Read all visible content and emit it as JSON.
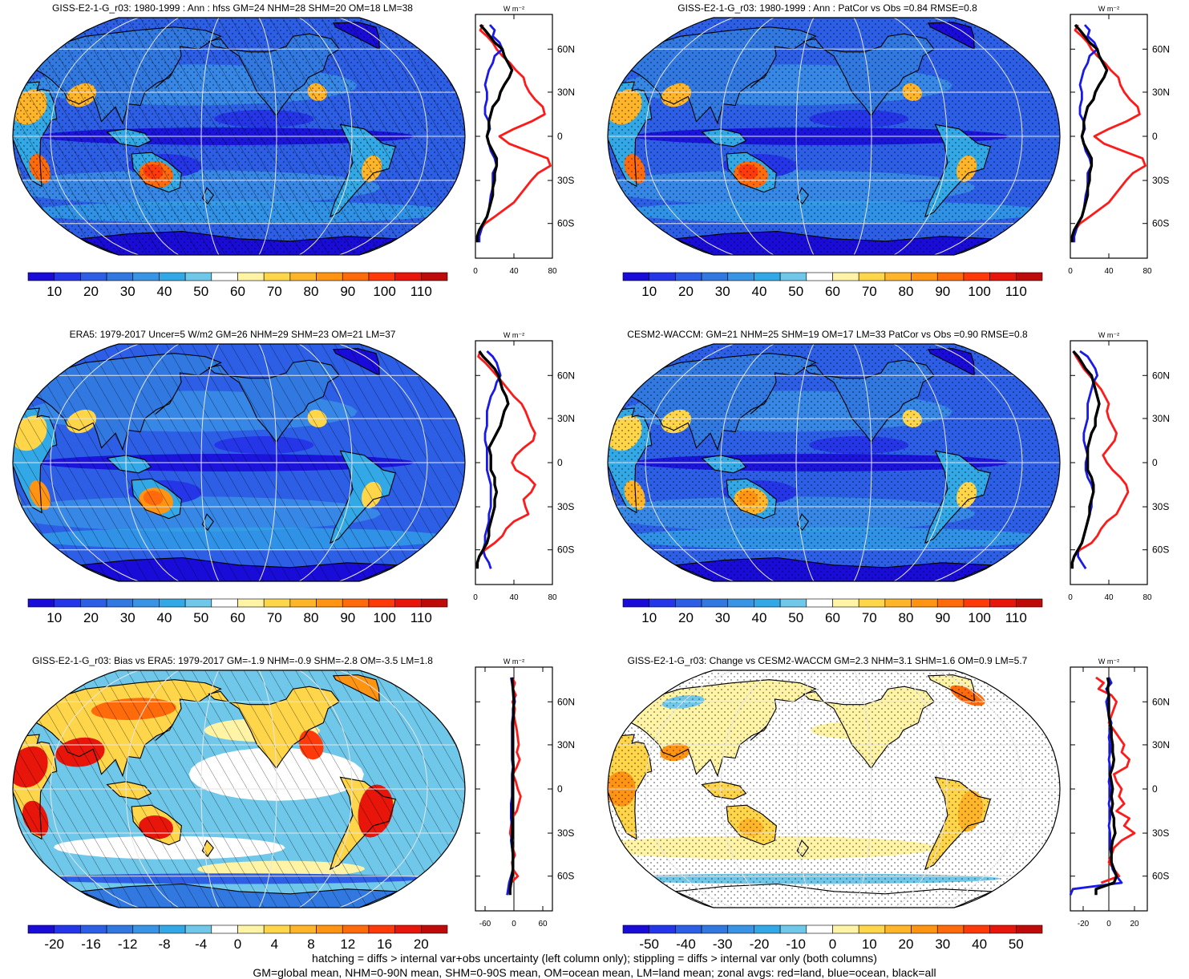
{
  "panels": [
    {
      "title": "GISS-E2-1-G_r03: 1980-1999 : Ann : hfss GM=24 NHM=28 SHM=20 OM=18 LM=38",
      "map_style": "model",
      "hatching": true,
      "stipple": true,
      "colorbar": {
        "labels": [
          "10",
          "20",
          "30",
          "40",
          "50",
          "60",
          "70",
          "80",
          "90",
          "100",
          "110"
        ],
        "colors": [
          "#1a0cd8",
          "#2436e8",
          "#2d5fe6",
          "#3179e0",
          "#3a94e6",
          "#32a8e6",
          "#6fc8ea",
          "#ffffff",
          "#fff3a6",
          "#ffd54a",
          "#ffb52a",
          "#ff9312",
          "#ff6a0a",
          "#ff3a0a",
          "#e8150a",
          "#bf0a0a"
        ]
      },
      "zonal": {
        "unit": "W m⁻²",
        "xticks": [
          "0",
          "40",
          "80"
        ],
        "xlim": [
          0,
          80
        ],
        "yticks": [
          "60N",
          "30N",
          "0",
          "30S",
          "60S"
        ],
        "lat": [
          80,
          75,
          70,
          65,
          60,
          55,
          50,
          45,
          40,
          35,
          30,
          25,
          20,
          15,
          10,
          5,
          0,
          -5,
          -10,
          -15,
          -20,
          -25,
          -30,
          -35,
          -40,
          -45,
          -50,
          -55,
          -60,
          -65,
          -70,
          -75
        ],
        "land": [
          8,
          5,
          12,
          18,
          22,
          28,
          36,
          42,
          50,
          52,
          56,
          62,
          70,
          72,
          58,
          40,
          25,
          35,
          55,
          75,
          78,
          65,
          58,
          52,
          46,
          40,
          30,
          20,
          10,
          5,
          null,
          null
        ],
        "ocean": [
          15,
          20,
          18,
          25,
          28,
          20,
          18,
          14,
          12,
          10,
          12,
          12,
          10,
          10,
          14,
          15,
          12,
          14,
          16,
          20,
          22,
          18,
          18,
          18,
          16,
          15,
          14,
          12,
          8,
          6,
          4,
          4
        ],
        "all": [
          5,
          10,
          15,
          20,
          28,
          30,
          34,
          38,
          35,
          30,
          26,
          24,
          18,
          16,
          14,
          14,
          12,
          14,
          18,
          22,
          22,
          20,
          20,
          18,
          18,
          16,
          14,
          12,
          8,
          4,
          2,
          2
        ]
      }
    },
    {
      "title": "GISS-E2-1-G_r03: 1980-1999 : Ann : PatCor vs Obs =0.84 RMSE=0.8",
      "map_style": "model",
      "hatching": false,
      "stipple": true,
      "colorbar": {
        "labels": [
          "10",
          "20",
          "30",
          "40",
          "50",
          "60",
          "70",
          "80",
          "90",
          "100",
          "110"
        ],
        "colors": [
          "#1a0cd8",
          "#2436e8",
          "#2d5fe6",
          "#3179e0",
          "#3a94e6",
          "#32a8e6",
          "#6fc8ea",
          "#ffffff",
          "#fff3a6",
          "#ffd54a",
          "#ffb52a",
          "#ff9312",
          "#ff6a0a",
          "#ff3a0a",
          "#e8150a",
          "#bf0a0a"
        ]
      },
      "zonal": {
        "unit": "W m⁻²",
        "xticks": [
          "0",
          "40",
          "80"
        ],
        "xlim": [
          0,
          80
        ],
        "yticks": [
          "60N",
          "30N",
          "0",
          "30S",
          "60S"
        ],
        "lat": [
          80,
          75,
          70,
          65,
          60,
          55,
          50,
          45,
          40,
          35,
          30,
          25,
          20,
          15,
          10,
          5,
          0,
          -5,
          -10,
          -15,
          -20,
          -25,
          -30,
          -35,
          -40,
          -45,
          -50,
          -55,
          -60,
          -65,
          -70,
          -75
        ],
        "land": [
          8,
          5,
          12,
          18,
          22,
          28,
          36,
          42,
          50,
          52,
          56,
          62,
          70,
          72,
          58,
          40,
          25,
          35,
          55,
          75,
          78,
          65,
          58,
          52,
          46,
          40,
          30,
          20,
          10,
          5,
          null,
          null
        ],
        "ocean": [
          15,
          20,
          18,
          25,
          28,
          20,
          18,
          14,
          12,
          10,
          12,
          12,
          10,
          10,
          14,
          15,
          12,
          14,
          16,
          20,
          22,
          18,
          18,
          18,
          16,
          15,
          14,
          12,
          8,
          6,
          4,
          4
        ],
        "all": [
          5,
          10,
          15,
          20,
          28,
          30,
          34,
          38,
          35,
          30,
          26,
          24,
          18,
          16,
          14,
          14,
          12,
          14,
          18,
          22,
          22,
          20,
          20,
          18,
          18,
          16,
          14,
          12,
          8,
          4,
          2,
          2
        ]
      }
    },
    {
      "title": "ERA5: 1979-2017 Uncer=5 W/m2 GM=26 NHM=29 SHM=23 OM=21 LM=37",
      "map_style": "obs",
      "hatching": true,
      "stipple": false,
      "colorbar": {
        "labels": [
          "10",
          "20",
          "30",
          "40",
          "50",
          "60",
          "70",
          "80",
          "90",
          "100",
          "110"
        ],
        "colors": [
          "#1a0cd8",
          "#2436e8",
          "#2d5fe6",
          "#3179e0",
          "#3a94e6",
          "#32a8e6",
          "#6fc8ea",
          "#ffffff",
          "#fff3a6",
          "#ffd54a",
          "#ffb52a",
          "#ff9312",
          "#ff6a0a",
          "#ff3a0a",
          "#e8150a",
          "#bf0a0a"
        ]
      },
      "zonal": {
        "unit": "W m⁻²",
        "xticks": [
          "0",
          "40",
          "80"
        ],
        "xlim": [
          0,
          80
        ],
        "yticks": [
          "60N",
          "30N",
          "0",
          "30S",
          "60S"
        ],
        "lat": [
          80,
          75,
          70,
          65,
          60,
          55,
          50,
          45,
          40,
          35,
          30,
          25,
          20,
          15,
          10,
          5,
          0,
          -5,
          -10,
          -15,
          -20,
          -25,
          -30,
          -35,
          -40,
          -45,
          -50,
          -55,
          -60,
          -65,
          -70,
          -75
        ],
        "land": [
          5,
          3,
          10,
          16,
          22,
          28,
          34,
          40,
          48,
          52,
          55,
          58,
          62,
          60,
          50,
          42,
          38,
          42,
          55,
          62,
          58,
          50,
          52,
          55,
          40,
          32,
          28,
          20,
          10,
          4,
          null,
          null
        ],
        "ocean": [
          12,
          18,
          22,
          24,
          26,
          22,
          20,
          16,
          14,
          12,
          12,
          12,
          10,
          10,
          12,
          12,
          12,
          12,
          14,
          16,
          16,
          16,
          16,
          14,
          14,
          12,
          10,
          10,
          8,
          10,
          14,
          16
        ],
        "all": [
          4,
          8,
          14,
          20,
          24,
          26,
          28,
          32,
          34,
          30,
          28,
          26,
          22,
          18,
          14,
          16,
          16,
          16,
          20,
          20,
          22,
          20,
          20,
          18,
          16,
          14,
          14,
          12,
          8,
          4,
          2,
          2
        ]
      }
    },
    {
      "title": "CESM2-WACCM: GM=21 NHM=25 SHM=19 OM=17 LM=33 PatCor vs Obs =0.90 RMSE=0.8",
      "map_style": "cesm",
      "hatching": false,
      "stipple": true,
      "colorbar": {
        "labels": [
          "10",
          "20",
          "30",
          "40",
          "50",
          "60",
          "70",
          "80",
          "90",
          "100",
          "110"
        ],
        "colors": [
          "#1a0cd8",
          "#2436e8",
          "#2d5fe6",
          "#3179e0",
          "#3a94e6",
          "#32a8e6",
          "#6fc8ea",
          "#ffffff",
          "#fff3a6",
          "#ffd54a",
          "#ffb52a",
          "#ff9312",
          "#ff6a0a",
          "#ff3a0a",
          "#e8150a",
          "#bf0a0a"
        ]
      },
      "zonal": {
        "unit": "W m⁻²",
        "xticks": [
          "0",
          "40",
          "80"
        ],
        "xlim": [
          0,
          80
        ],
        "yticks": [
          "60N",
          "30N",
          "0",
          "30S",
          "60S"
        ],
        "lat": [
          80,
          75,
          70,
          65,
          60,
          55,
          50,
          45,
          40,
          35,
          30,
          25,
          20,
          15,
          10,
          5,
          0,
          -5,
          -10,
          -15,
          -20,
          -25,
          -30,
          -35,
          -40,
          -45,
          -50,
          -55,
          -60,
          -65,
          -70,
          -75
        ],
        "land": [
          3,
          6,
          10,
          14,
          20,
          26,
          32,
          36,
          40,
          38,
          40,
          44,
          48,
          46,
          40,
          34,
          38,
          44,
          52,
          58,
          60,
          56,
          52,
          48,
          38,
          32,
          28,
          22,
          10,
          4,
          null,
          null
        ],
        "ocean": [
          10,
          18,
          22,
          26,
          28,
          24,
          22,
          20,
          18,
          18,
          18,
          16,
          14,
          14,
          16,
          18,
          16,
          16,
          18,
          22,
          24,
          22,
          22,
          20,
          18,
          16,
          14,
          12,
          8,
          8,
          12,
          16
        ],
        "all": [
          3,
          8,
          12,
          16,
          22,
          24,
          26,
          28,
          30,
          28,
          26,
          26,
          22,
          20,
          18,
          18,
          18,
          18,
          22,
          24,
          24,
          22,
          20,
          20,
          18,
          16,
          14,
          12,
          8,
          4,
          2,
          2
        ]
      }
    },
    {
      "title": "GISS-E2-1-G_r03: Bias vs ERA5: 1979-2017 GM=-1.9 NHM=-0.9 SHM=-2.8 OM=-3.5 LM=1.8",
      "map_style": "bias",
      "hatching": true,
      "stipple": false,
      "colorbar": {
        "labels": [
          "-20",
          "-16",
          "-12",
          "-8",
          "-4",
          "0",
          "4",
          "8",
          "12",
          "16",
          "20"
        ],
        "colors": [
          "#1a0cd8",
          "#2436e8",
          "#2d5fe6",
          "#3179e0",
          "#3a94e6",
          "#32a8e6",
          "#6fc8ea",
          "#ffffff",
          "#fff3a6",
          "#ffd54a",
          "#ffb52a",
          "#ff9312",
          "#ff6a0a",
          "#ff3a0a",
          "#e8150a",
          "#bf0a0a"
        ]
      },
      "zonal": {
        "unit": "W m⁻²",
        "xticks": [
          "-60",
          "0",
          "60"
        ],
        "xlim": [
          -80,
          80
        ],
        "yticks": [
          "60N",
          "30N",
          "0",
          "30S",
          "60S"
        ],
        "lat": [
          80,
          75,
          70,
          65,
          60,
          55,
          50,
          45,
          40,
          35,
          30,
          25,
          20,
          15,
          10,
          5,
          0,
          -5,
          -10,
          -15,
          -20,
          -25,
          -30,
          -35,
          -40,
          -45,
          -50,
          -55,
          -60,
          -65,
          -70,
          -75
        ],
        "land": [
          -4,
          2,
          -2,
          4,
          -3,
          2,
          0,
          3,
          6,
          8,
          10,
          6,
          12,
          6,
          -2,
          4,
          8,
          14,
          10,
          6,
          -4,
          -6,
          -8,
          -4,
          -2,
          2,
          -4,
          -2,
          8,
          -6,
          null,
          null
        ],
        "ocean": [
          -6,
          -4,
          -2,
          0,
          2,
          -2,
          -2,
          -4,
          -4,
          -4,
          -4,
          -4,
          -4,
          -2,
          -4,
          -4,
          -4,
          -4,
          -6,
          -6,
          -6,
          -4,
          -4,
          -6,
          -4,
          -2,
          -2,
          -2,
          -6,
          -10,
          -12,
          -14
        ],
        "all": [
          -4,
          -3,
          -2,
          -1,
          0,
          -1,
          -1,
          -2,
          -2,
          -2,
          -2,
          -2,
          -2,
          -1,
          -2,
          -2,
          -2,
          -2,
          -3,
          -3,
          -3,
          -3,
          -3,
          -4,
          -3,
          -2,
          -2,
          -2,
          -4,
          -6,
          -8,
          -8
        ]
      }
    },
    {
      "title": "GISS-E2-1-G_r03: Change vs CESM2-WACCM GM=2.3 NHM=3.1 SHM=1.6 OM=0.9 LM=5.7",
      "map_style": "change",
      "hatching": false,
      "stipple": true,
      "colorbar": {
        "labels": [
          "-50",
          "-40",
          "-30",
          "-20",
          "-10",
          "0",
          "10",
          "20",
          "30",
          "40",
          "50"
        ],
        "colors": [
          "#1a0cd8",
          "#2436e8",
          "#2d5fe6",
          "#3179e0",
          "#3a94e6",
          "#32a8e6",
          "#6fc8ea",
          "#ffffff",
          "#fff3a6",
          "#ffd54a",
          "#ffb52a",
          "#ff9312",
          "#ff6a0a",
          "#ff3a0a",
          "#e8150a",
          "#bf0a0a"
        ]
      },
      "zonal": {
        "unit": "W m⁻²",
        "xticks": [
          "-20",
          "0",
          "20"
        ],
        "xlim": [
          -30,
          30
        ],
        "yticks": [
          "60N",
          "30N",
          "0",
          "30S",
          "60S"
        ],
        "lat": [
          80,
          75,
          70,
          65,
          60,
          55,
          50,
          45,
          40,
          35,
          30,
          25,
          20,
          15,
          10,
          5,
          0,
          -5,
          -10,
          -15,
          -20,
          -25,
          -30,
          -35,
          -40,
          -45,
          -50,
          -55,
          -60,
          -65,
          -70,
          -75
        ],
        "land": [
          -10,
          -4,
          -8,
          2,
          6,
          4,
          2,
          0,
          4,
          8,
          12,
          10,
          16,
          14,
          4,
          6,
          10,
          8,
          12,
          6,
          16,
          12,
          20,
          10,
          4,
          2,
          0,
          4,
          8,
          -6,
          null,
          null
        ],
        "ocean": [
          0,
          2,
          -2,
          0,
          -2,
          -1,
          0,
          2,
          1,
          0,
          1,
          1,
          0,
          1,
          1,
          0,
          1,
          1,
          0,
          1,
          1,
          0,
          1,
          1,
          1,
          2,
          2,
          3,
          6,
          10,
          -28,
          -30
        ],
        "all": [
          -1,
          0,
          -1,
          0,
          0,
          0,
          0,
          1,
          2,
          2,
          3,
          3,
          4,
          3,
          1,
          2,
          3,
          2,
          3,
          2,
          4,
          4,
          5,
          3,
          2,
          2,
          2,
          4,
          6,
          4,
          -10,
          -10
        ]
      }
    }
  ],
  "footer": {
    "line1": "hatching = diffs > internal var+obs uncertainty (left column only); stippling = diffs > internal var only (both columns)",
    "line2": "GM=global mean, NHM=0-90N mean, SHM=0-90S mean, OM=ocean mean, LM=land mean; zonal avgs: red=land, blue=ocean, black=all"
  },
  "chart_data": [
    {
      "type": "line",
      "title": "GISS-E2-1-G_r03: 1980-1999 : Ann : hfss GM=24 NHM=28 SHM=20 OM=18 LM=38",
      "xlabel": "W m⁻²",
      "xlim": [
        0,
        80
      ]
    },
    {
      "type": "line",
      "title": "GISS-E2-1-G_r03: 1980-1999 : Ann : PatCor vs Obs =0.84 RMSE=0.8",
      "xlabel": "W m⁻²",
      "xlim": [
        0,
        80
      ]
    },
    {
      "type": "line",
      "title": "ERA5: 1979-2017 Uncer=5 W/m2 GM=26 NHM=29 SHM=23 OM=21 LM=37",
      "xlabel": "W m⁻²",
      "xlim": [
        0,
        80
      ]
    },
    {
      "type": "line",
      "title": "CESM2-WACCM: GM=21 NHM=25 SHM=19 OM=17 LM=33 PatCor vs Obs =0.90 RMSE=0.8",
      "xlabel": "W m⁻²",
      "xlim": [
        0,
        80
      ]
    },
    {
      "type": "line",
      "title": "GISS-E2-1-G_r03: Bias vs ERA5: 1979-2017 GM=-1.9 NHM=-0.9 SHM=-2.8 OM=-3.5 LM=1.8",
      "xlabel": "W m⁻²",
      "xlim": [
        -80,
        80
      ]
    },
    {
      "type": "line",
      "title": "GISS-E2-1-G_r03: Change vs CESM2-WACCM GM=2.3 NHM=3.1 SHM=1.6 OM=0.9 LM=5.7",
      "xlabel": "W m⁻²",
      "xlim": [
        -30,
        30
      ]
    }
  ]
}
